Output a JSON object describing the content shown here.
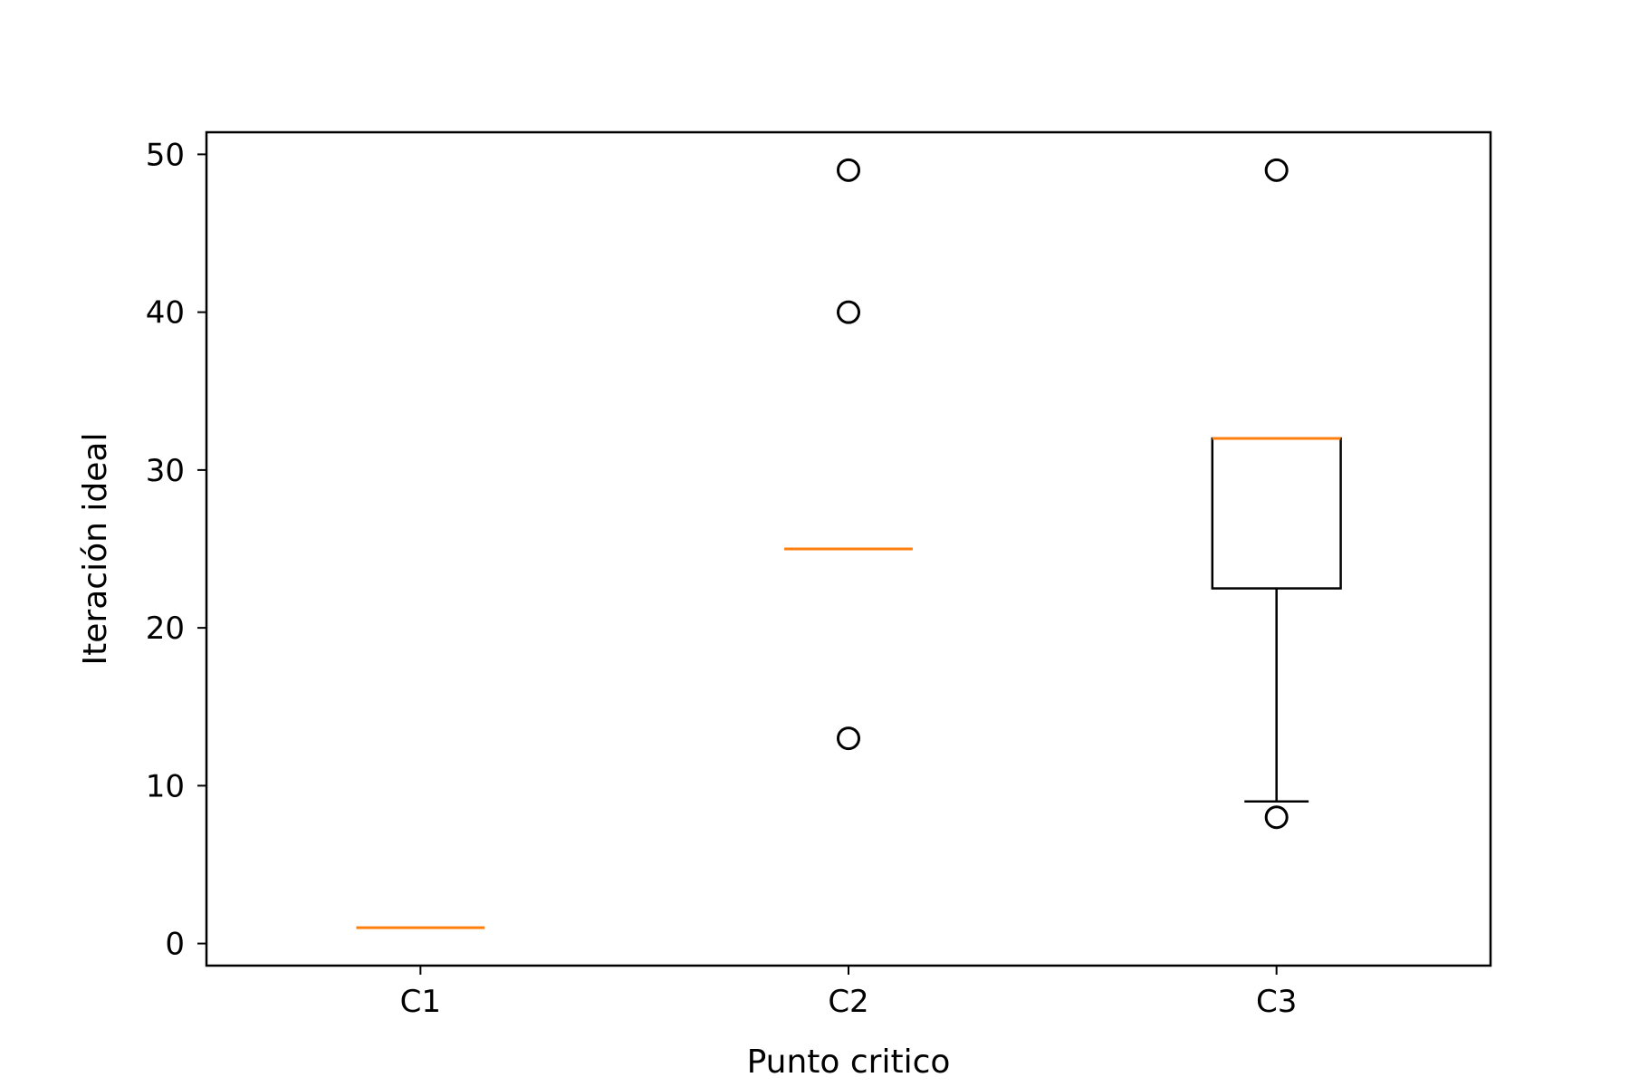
{
  "chart_data": {
    "type": "box",
    "title": "",
    "xlabel": "Punto critico",
    "ylabel": "Iteración ideal",
    "ylim": [
      -1.4,
      51.4
    ],
    "yticks": [
      0,
      10,
      20,
      30,
      40,
      50
    ],
    "grid": false,
    "categories": [
      "C1",
      "C2",
      "C3"
    ],
    "boxes": [
      {
        "category": "C1",
        "whisker_low": 1,
        "q1": 1,
        "median": 1,
        "q3": 1,
        "whisker_high": 1,
        "outliers": []
      },
      {
        "category": "C2",
        "whisker_low": 25,
        "q1": 25,
        "median": 25,
        "q3": 25,
        "whisker_high": 25,
        "outliers": [
          13,
          40,
          49
        ]
      },
      {
        "category": "C3",
        "whisker_low": 9,
        "q1": 22.5,
        "median": 32,
        "q3": 32,
        "whisker_high": 32,
        "outliers": [
          8,
          49
        ]
      }
    ],
    "colors": {
      "box": "#000000",
      "median": "#ff7f0e",
      "outlier": "#000000",
      "axes": "#000000"
    }
  }
}
